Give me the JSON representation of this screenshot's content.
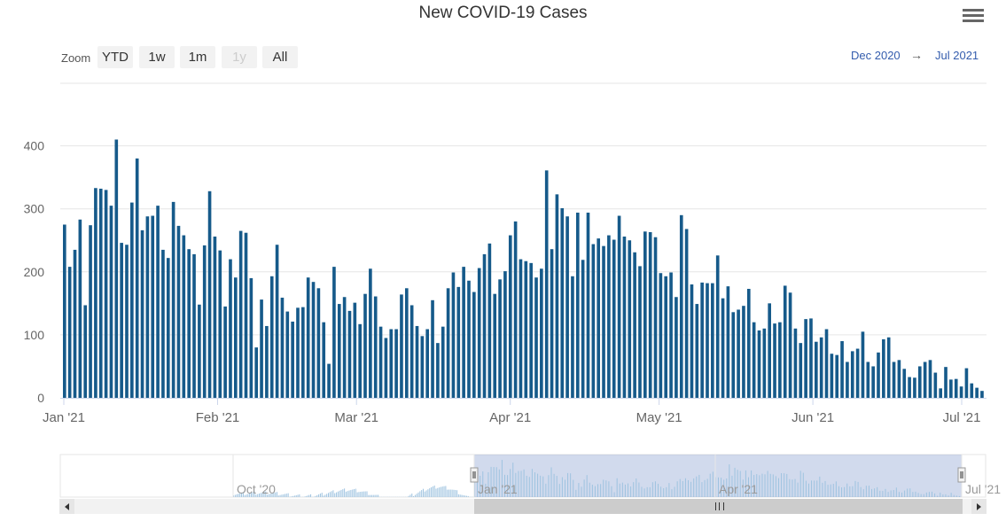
{
  "title": "New COVID-19 Cases",
  "icons": {
    "menu": "hamburger-menu-icon"
  },
  "zoom": {
    "label": "Zoom",
    "buttons": [
      {
        "label": "YTD",
        "disabled": false
      },
      {
        "label": "1w",
        "disabled": false
      },
      {
        "label": "1m",
        "disabled": false
      },
      {
        "label": "1y",
        "disabled": true
      },
      {
        "label": "All",
        "disabled": false
      }
    ]
  },
  "range": {
    "from": "Dec 2020",
    "arrow": "→",
    "to": "Jul 2021"
  },
  "colors": {
    "bar": "#165a8a",
    "navigator_fill": "rgba(102,133,194,0.3)",
    "navigator_series": "#9ec3e0",
    "grid": "#e6e6e6"
  },
  "navigator": {
    "labels": [
      "Oct '20",
      "Jan '21",
      "Apr '21",
      "Jul '21"
    ]
  },
  "chart_data": {
    "type": "bar",
    "title": "New COVID-19 Cases",
    "x_start": "2021-01-01",
    "x_end": "2021-07-05",
    "ylim": [
      0,
      430
    ],
    "yticks": [
      0,
      100,
      200,
      300,
      400
    ],
    "xtick_labels": [
      "Jan '21",
      "Feb '21",
      "Mar '21",
      "Apr '21",
      "May '21",
      "Jun '21",
      "Jul '21"
    ],
    "xtick_dates": [
      "2021-01-01",
      "2021-02-01",
      "2021-03-01",
      "2021-04-01",
      "2021-05-01",
      "2021-06-01",
      "2021-07-01"
    ],
    "grid": true,
    "values": [
      275,
      208,
      235,
      283,
      147,
      274,
      333,
      332,
      330,
      305,
      410,
      246,
      243,
      310,
      380,
      266,
      288,
      289,
      305,
      235,
      222,
      311,
      273,
      258,
      236,
      228,
      148,
      242,
      328,
      256,
      234,
      145,
      220,
      191,
      265,
      262,
      190,
      80,
      156,
      114,
      193,
      243,
      159,
      137,
      121,
      143,
      144,
      191,
      184,
      174,
      120,
      54,
      208,
      149,
      160,
      138,
      151,
      117,
      165,
      205,
      161,
      113,
      95,
      109,
      109,
      164,
      174,
      147,
      114,
      98,
      109,
      155,
      87,
      113,
      174,
      199,
      176,
      208,
      186,
      168,
      206,
      228,
      245,
      165,
      188,
      201,
      258,
      280,
      220,
      217,
      214,
      191,
      205,
      361,
      236,
      323,
      301,
      288,
      193,
      294,
      219,
      294,
      244,
      253,
      241,
      258,
      251,
      289,
      256,
      250,
      231,
      209,
      264,
      263,
      255,
      198,
      193,
      199,
      160,
      290,
      268,
      180,
      149,
      183,
      182,
      182,
      226,
      158,
      177,
      136,
      140,
      146,
      173,
      120,
      107,
      110,
      150,
      118,
      120,
      178,
      167,
      110,
      87,
      125,
      126,
      89,
      96,
      109,
      70,
      68,
      90,
      57,
      74,
      78,
      105,
      57,
      50,
      72,
      93,
      96,
      57,
      60,
      46,
      33,
      32,
      50,
      57,
      60,
      40,
      15,
      49,
      29,
      30,
      18,
      47,
      23,
      16,
      11
    ]
  }
}
